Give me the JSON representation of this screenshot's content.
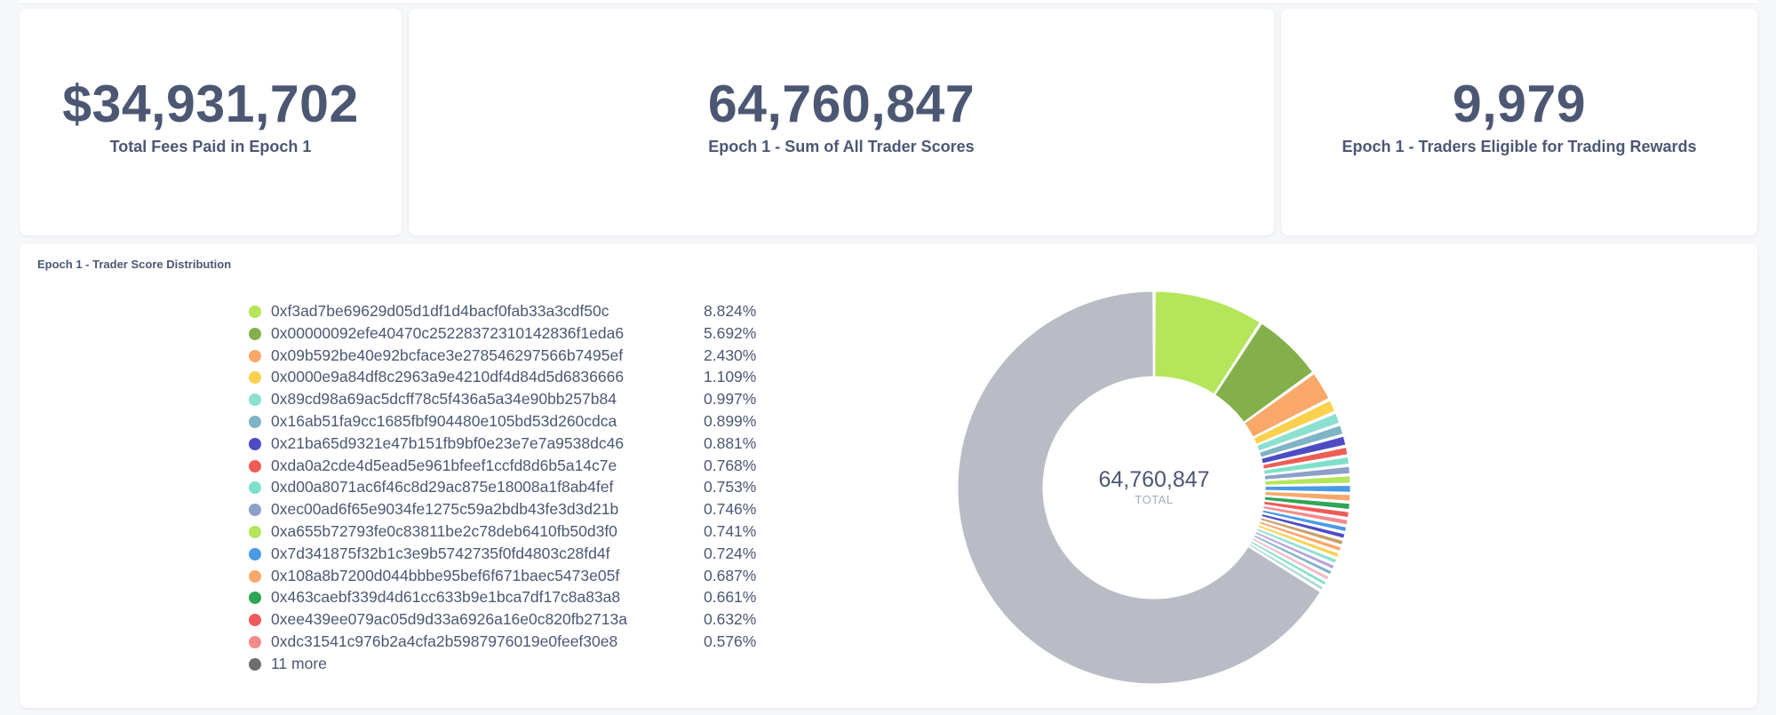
{
  "scalars": {
    "fees": {
      "value": "$34,931,702",
      "label": "Total Fees Paid in Epoch 1"
    },
    "scores": {
      "value": "64,760,847",
      "label": "Epoch 1 - Sum of All Trader Scores"
    },
    "traders": {
      "value": "9,979",
      "label": "Epoch 1 - Traders Eligible for Trading Rewards"
    }
  },
  "chart_data": {
    "type": "pie",
    "title": "Epoch 1 - Trader Score Distribution",
    "total_value": "64,760,847",
    "total_label": "TOTAL",
    "legend": [
      {
        "name": "0xf3ad7be69629d05d1df1d4bacf0fab33a3cdf50c",
        "pct": "8.824%",
        "color": "#b4e55a"
      },
      {
        "name": "0x00000092efe40470c25228372310142836f1eda6",
        "pct": "5.692%",
        "color": "#84b04b"
      },
      {
        "name": "0x09b592be40e92bcface3e278546297566b7495ef",
        "pct": "2.430%",
        "color": "#f9a86a"
      },
      {
        "name": "0x0000e9a84df8c2963a9e4210df4d84d5d6836666",
        "pct": "1.109%",
        "color": "#fad14f"
      },
      {
        "name": "0x89cd98a69ac5dcff78c5f436a5a34e90bb257b84",
        "pct": "0.997%",
        "color": "#8ce0d0"
      },
      {
        "name": "0x16ab51fa9cc1685fbf904480e105bd53d260cdca",
        "pct": "0.899%",
        "color": "#7fb3c6"
      },
      {
        "name": "0x21ba65d9321e47b151fb9bf0e23e7e7a9538dc46",
        "pct": "0.881%",
        "color": "#4d4cc5"
      },
      {
        "name": "0xda0a2cde4d5ead5e961bfeef1ccfd8d6b5a14c7e",
        "pct": "0.768%",
        "color": "#ee5d55"
      },
      {
        "name": "0xd00a8071ac6f46c8d29ac875e18008a1f8ab4fef",
        "pct": "0.753%",
        "color": "#7fe0c9"
      },
      {
        "name": "0xec00ad6f65e9034fe1275c59a2bdb43fe3d3d21b",
        "pct": "0.746%",
        "color": "#8ca0c8"
      },
      {
        "name": "0xa655b72793fe0c83811be2c78deb6410fb50d3f0",
        "pct": "0.741%",
        "color": "#b4e55a"
      },
      {
        "name": "0x7d341875f32b1c3e9b5742735f0fd4803c28fd4f",
        "pct": "0.724%",
        "color": "#4a9ae5"
      },
      {
        "name": "0x108a8b7200d044bbbe95bef6f671baec5473e05f",
        "pct": "0.687%",
        "color": "#f9a86a"
      },
      {
        "name": "0x463caebf339d4d61cc633b9e1bca7df17c8a83a8",
        "pct": "0.661%",
        "color": "#2fa556"
      },
      {
        "name": "0xee439ee079ac05d9d33a6926a16e0c820fb2713a",
        "pct": "0.632%",
        "color": "#ef5a5a"
      },
      {
        "name": "0xdc31541c976b2a4cfa2b5987976019e0feef30e8",
        "pct": "0.576%",
        "color": "#f38b8b"
      },
      {
        "name": "11 more",
        "pct": "",
        "color": "#6e6e6e"
      }
    ],
    "slices": [
      {
        "value": 8.824,
        "color": "#b4e55a"
      },
      {
        "value": 5.692,
        "color": "#84b04b"
      },
      {
        "value": 2.43,
        "color": "#f9a86a"
      },
      {
        "value": 1.109,
        "color": "#fad14f"
      },
      {
        "value": 0.997,
        "color": "#8ce0d0"
      },
      {
        "value": 0.899,
        "color": "#7fb3c6"
      },
      {
        "value": 0.881,
        "color": "#4d4cc5"
      },
      {
        "value": 0.768,
        "color": "#ee5d55"
      },
      {
        "value": 0.753,
        "color": "#7fe0c9"
      },
      {
        "value": 0.746,
        "color": "#8ca0c8"
      },
      {
        "value": 0.741,
        "color": "#b4e55a"
      },
      {
        "value": 0.724,
        "color": "#4a9ae5"
      },
      {
        "value": 0.687,
        "color": "#f9a86a"
      },
      {
        "value": 0.661,
        "color": "#2fa556"
      },
      {
        "value": 0.632,
        "color": "#ef5a5a"
      },
      {
        "value": 0.576,
        "color": "#f38b8b"
      },
      {
        "value": 0.55,
        "color": "#4a9ae5"
      },
      {
        "value": 0.54,
        "color": "#4d4cc5"
      },
      {
        "value": 0.53,
        "color": "#c9a06a"
      },
      {
        "value": 0.52,
        "color": "#f9a86a"
      },
      {
        "value": 0.51,
        "color": "#fad14f"
      },
      {
        "value": 0.5,
        "color": "#8ce0d0"
      },
      {
        "value": 0.49,
        "color": "#b7a3d9"
      },
      {
        "value": 0.48,
        "color": "#7fb3c6"
      },
      {
        "value": 0.47,
        "color": "#f3b6c8"
      },
      {
        "value": 0.46,
        "color": "#7fe0c9"
      },
      {
        "value": 0.45,
        "color": "#a9d9d2"
      },
      {
        "value": 63.8,
        "color": "#b9bbc5"
      }
    ]
  }
}
